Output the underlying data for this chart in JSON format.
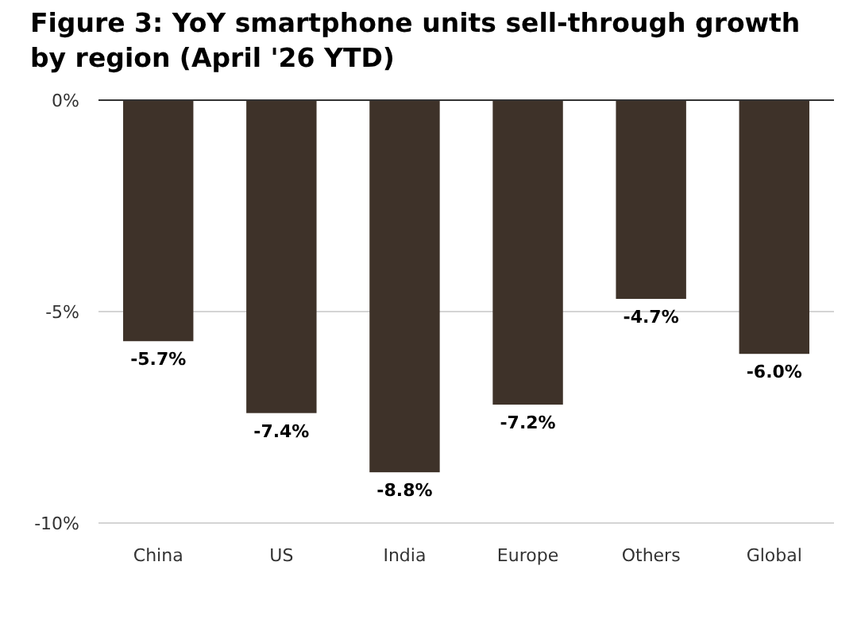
{
  "chart_data": {
    "type": "bar",
    "title": "Figure 3: YoY smartphone units sell-through growth by region (April '26 YTD)",
    "categories": [
      "China",
      "US",
      "India",
      "Europe",
      "Others",
      "Global"
    ],
    "values": [
      -5.7,
      -7.4,
      -8.8,
      -7.2,
      -4.7,
      -6.0
    ],
    "value_labels": [
      "-5.7%",
      "-7.4%",
      "-8.8%",
      "-7.2%",
      "-4.7%",
      "-6.0%"
    ],
    "color": "#3e3229",
    "ylim": [
      -10,
      0
    ],
    "yticks": [
      {
        "value": 0,
        "label": "0%"
      },
      {
        "value": -5,
        "label": "-5%"
      },
      {
        "value": -10,
        "label": "-10%"
      }
    ],
    "grid": "y"
  }
}
